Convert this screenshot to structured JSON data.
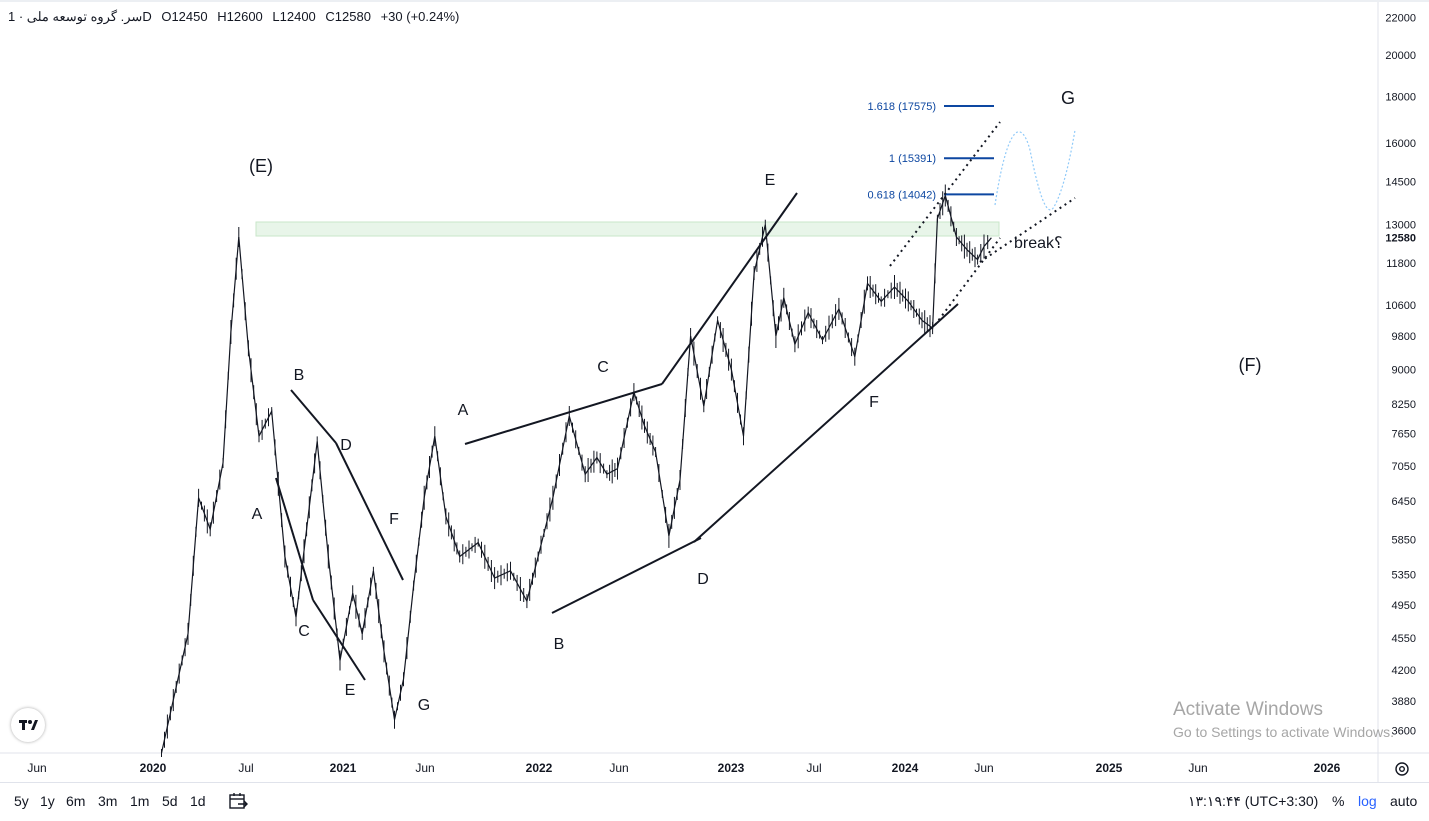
{
  "header": {
    "symbol": "سر. گروه توسعه ملی · 1D",
    "open": "O12450",
    "high": "H12600",
    "low": "L12400",
    "close": "C12580",
    "change": "+30 (+0.24%)"
  },
  "chart_data": {
    "type": "line",
    "scale": "log",
    "ylim": [
      3400,
      23000
    ],
    "xlim": [
      "2019-05-01",
      "2026-06-15"
    ],
    "y_ticks": [
      "22000",
      "20000",
      "18000",
      "16000",
      "14500",
      "13000",
      "11800",
      "10600",
      "9800",
      "9000",
      "8250",
      "7650",
      "7050",
      "6450",
      "5850",
      "5350",
      "4950",
      "4550",
      "4200",
      "3880",
      "3600"
    ],
    "x_ticks": [
      "Jun",
      "2020",
      "Jul",
      "2021",
      "Jun",
      "2022",
      "Jun",
      "2023",
      "Jul",
      "2024",
      "Jun",
      "2025",
      "Jun",
      "2026"
    ],
    "last_price_label": "12580",
    "series": [
      {
        "x": [
          "2020-03-01",
          "2020-04-20",
          "2020-05-10",
          "2020-06-01",
          "2020-06-25",
          "2020-07-10",
          "2020-07-25",
          "2020-08-12",
          "2020-09-01",
          "2020-09-25",
          "2020-10-20",
          "2020-11-10",
          "2020-11-30",
          "2020-12-20",
          "2021-01-10",
          "2021-02-01",
          "2021-02-25",
          "2021-03-15",
          "2021-04-05",
          "2021-04-25",
          "2021-05-15",
          "2021-06-01",
          "2021-06-20",
          "2021-07-10",
          "2021-07-30",
          "2021-08-20",
          "2021-09-15",
          "2021-10-20",
          "2021-11-20",
          "2021-12-20",
          "2022-01-20",
          "2022-02-10",
          "2022-03-10",
          "2022-04-10",
          "2022-05-10",
          "2022-06-01",
          "2022-06-20",
          "2022-07-10",
          "2022-08-10",
          "2022-08-30",
          "2022-09-20",
          "2022-10-15",
          "2022-11-05",
          "2022-11-25",
          "2022-12-20",
          "2023-01-15",
          "2023-02-10",
          "2023-03-05",
          "2023-03-25",
          "2023-04-15",
          "2023-05-05",
          "2023-05-20",
          "2023-06-10",
          "2023-07-05",
          "2023-08-01",
          "2023-09-01",
          "2023-10-01",
          "2023-10-25",
          "2023-11-20",
          "2023-12-15",
          "2024-01-10",
          "2024-02-05",
          "2024-02-25",
          "2024-03-05",
          "2024-03-20",
          "2024-04-10",
          "2024-04-30",
          "2024-05-20",
          "2024-06-01",
          "2024-06-15"
        ],
        "y": [
          3400,
          4600,
          6500,
          6000,
          7100,
          9900,
          12600,
          9500,
          7600,
          8100,
          5600,
          4800,
          6000,
          7500,
          5600,
          4300,
          5100,
          4600,
          5400,
          4400,
          3700,
          4100,
          5200,
          6500,
          7600,
          6200,
          5600,
          5800,
          5300,
          5400,
          5000,
          5600,
          6500,
          8000,
          6900,
          7200,
          6900,
          7000,
          8500,
          7800,
          7300,
          5900,
          6800,
          9800,
          8200,
          10200,
          9000,
          7600,
          11500,
          13000,
          9800,
          10800,
          9600,
          10400,
          9700,
          10500,
          9300,
          11200,
          10700,
          11100,
          10700,
          10200,
          10000,
          13200,
          14000,
          12600,
          12200,
          11900,
          12300,
          12580
        ],
        "name": ""
      }
    ],
    "fib_levels": [
      {
        "label": "1.618 (17575)",
        "value": 17575
      },
      {
        "label": "1 (15391)",
        "value": 15391
      },
      {
        "label": "0.618 (14042)",
        "value": 14042
      }
    ],
    "wave_labels": [
      {
        "text": "(E)"
      },
      {
        "text": "A"
      },
      {
        "text": "B"
      },
      {
        "text": "C"
      },
      {
        "text": "D"
      },
      {
        "text": "E"
      },
      {
        "text": "F"
      },
      {
        "text": "G"
      },
      {
        "text": "A"
      },
      {
        "text": "B"
      },
      {
        "text": "C"
      },
      {
        "text": "D"
      },
      {
        "text": "E"
      },
      {
        "text": "F"
      },
      {
        "text": "G"
      },
      {
        "text": "(F)"
      },
      {
        "text": "break؟"
      }
    ]
  },
  "bottom_bar": {
    "ranges": [
      "5y",
      "1y",
      "6m",
      "3m",
      "1m",
      "5d",
      "1d"
    ],
    "clock": "۱۳:۱۹:۴۴ (UTC+3:30)",
    "percent": "%",
    "log": "log",
    "auto": "auto"
  },
  "watermark": {
    "title": "Activate Windows",
    "subtitle": "Go to Settings to activate Windows."
  },
  "colors": {
    "candles": "#131722",
    "fib": "#0d47a1",
    "zone": "#e8f5e9",
    "projection": "#90caf9",
    "log_active": "#2962ff"
  },
  "icons": {
    "logo": "tradingview-logo-icon",
    "calendar": "calendar-goto-icon",
    "settings": "gear-icon"
  }
}
